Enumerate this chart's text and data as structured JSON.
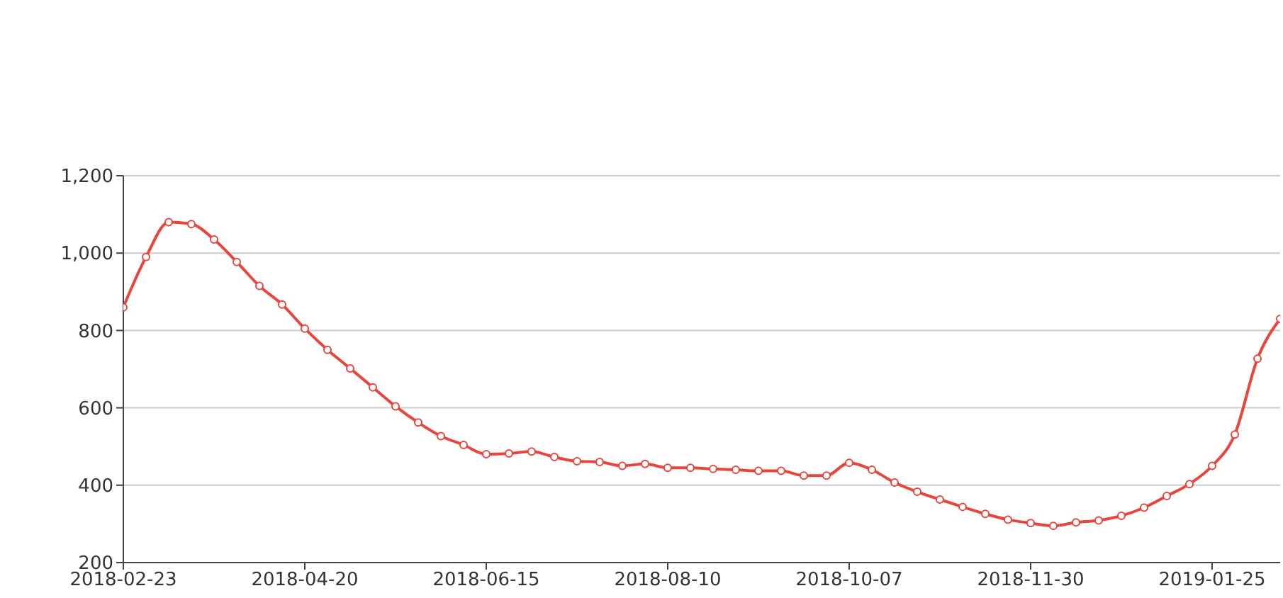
{
  "chart_data": {
    "type": "line",
    "categories": [
      "2018-02-23",
      null,
      null,
      null,
      null,
      null,
      null,
      null,
      "2018-04-20",
      null,
      null,
      null,
      null,
      null,
      null,
      null,
      "2018-06-15",
      null,
      null,
      null,
      null,
      null,
      null,
      null,
      "2018-08-10",
      null,
      null,
      null,
      null,
      null,
      null,
      null,
      "2018-10-07",
      null,
      null,
      null,
      null,
      null,
      null,
      null,
      "2018-11-30",
      null,
      null,
      null,
      null,
      null,
      null,
      null,
      "2019-01-25",
      null,
      null,
      null
    ],
    "series": [
      {
        "color": "#e8453c",
        "values": [
          860,
          990,
          1080,
          1075,
          1035,
          977,
          915,
          867,
          805,
          750,
          702,
          653,
          604,
          562,
          527,
          504,
          480,
          482,
          487,
          473,
          462,
          460,
          450,
          455,
          445,
          445,
          442,
          440,
          437,
          437,
          425,
          425,
          458,
          440,
          407,
          383,
          363,
          344,
          326,
          311,
          302,
          295,
          304,
          309,
          321,
          342,
          372,
          403,
          450,
          531,
          727,
          830
        ]
      }
    ],
    "ylim": [
      200,
      1200
    ],
    "yticks": [
      {
        "value": 200,
        "label": "200"
      },
      {
        "value": 400,
        "label": "400"
      },
      {
        "value": 600,
        "label": "600"
      },
      {
        "value": 800,
        "label": "800"
      },
      {
        "value": 1000,
        "label": "1,000"
      },
      {
        "value": 1200,
        "label": "1,200"
      }
    ],
    "grid": "y",
    "marker": "circle",
    "line_style": "solid"
  }
}
